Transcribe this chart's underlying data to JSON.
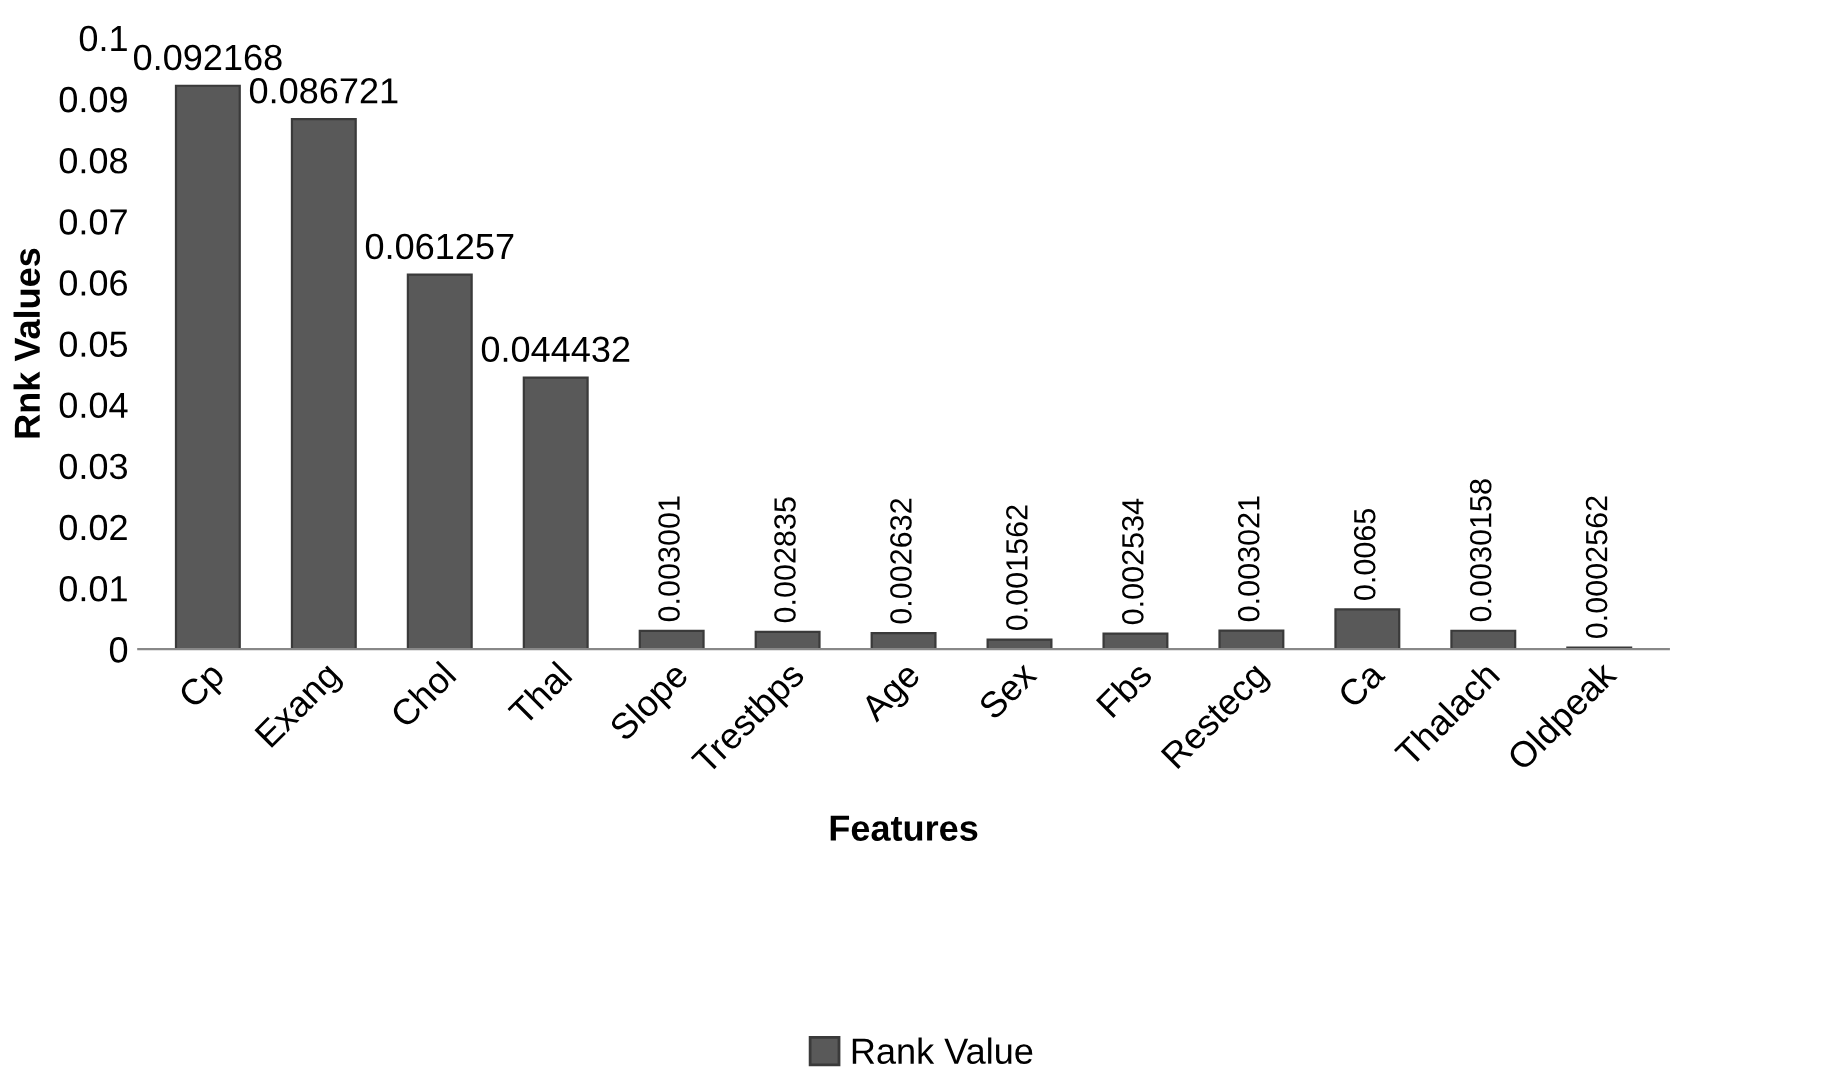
{
  "chart_data": {
    "type": "bar",
    "xlabel": "Features",
    "ylabel": "Rnk Values",
    "categories": [
      "Cp",
      "Exang",
      "Chol",
      "Thal",
      "Slope",
      "Trestbps",
      "Age",
      "Sex",
      "Fbs",
      "Restecg",
      "Ca",
      "Thalach",
      "Oldpeak"
    ],
    "series": [
      {
        "name": "Rank Value",
        "color": "#595959",
        "values": [
          0.092168,
          0.086721,
          0.061257,
          0.044432,
          0.003001,
          0.002835,
          0.002632,
          0.001562,
          0.002534,
          0.003021,
          0.0065,
          0.0030158,
          0.0002562
        ]
      }
    ],
    "data_labels": true,
    "ylim": [
      0,
      0.1
    ],
    "yticks": [
      0,
      0.01,
      0.02,
      0.03,
      0.04,
      0.05,
      0.06,
      0.07,
      0.08,
      0.09,
      0.1
    ],
    "legend": "bottom",
    "grid": false
  }
}
